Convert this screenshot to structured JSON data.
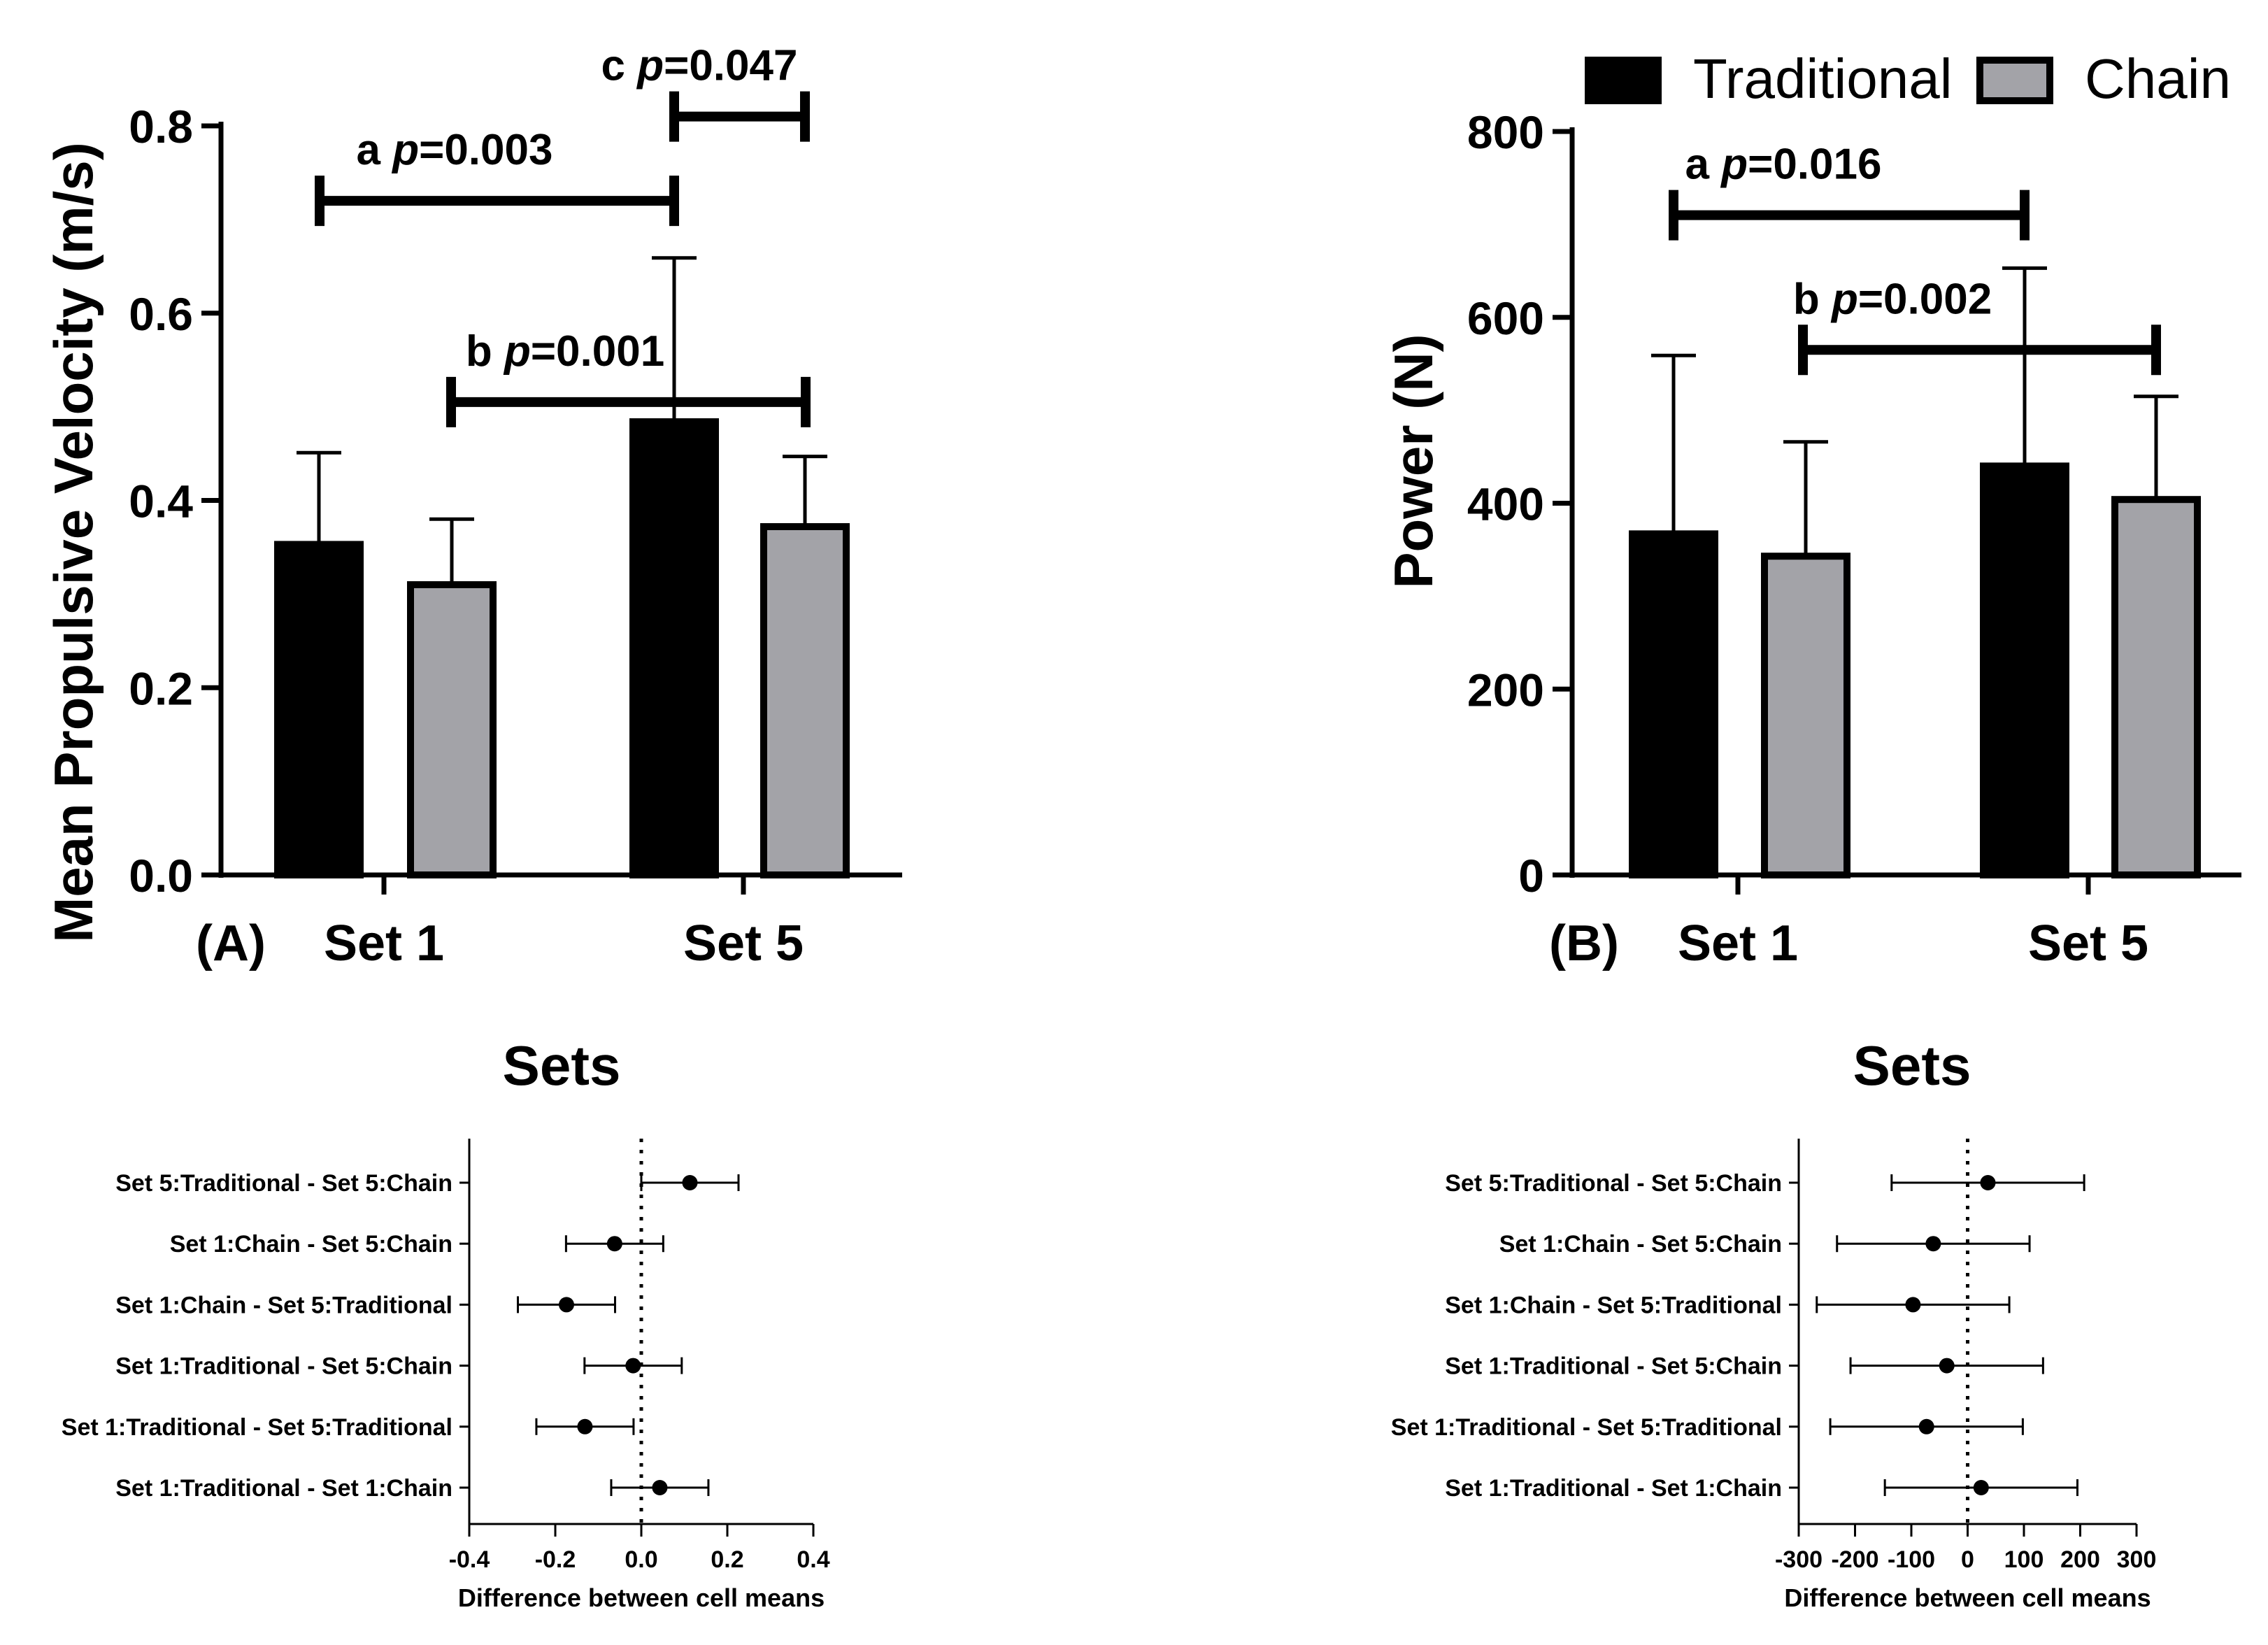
{
  "colors": {
    "traditional": "#000000",
    "chain": "#a3a3a8",
    "axis": "#000000",
    "background": "#ffffff"
  },
  "chart_data": [
    {
      "id": "A",
      "type": "bar",
      "panel_label": "(A)",
      "title": "",
      "ylabel": "Mean Propulsive Velocity (m/s)",
      "xlabel": "",
      "categories": [
        "Set 1",
        "Set 5"
      ],
      "ylim": [
        0,
        0.8
      ],
      "yticks": [
        0,
        0.2,
        0.4,
        0.6,
        0.8
      ],
      "ytick_labels": [
        "0.0",
        "0.2",
        "0.4",
        "0.6",
        "0.8"
      ],
      "series": [
        {
          "name": "Traditional",
          "values": [
            0.353,
            0.484
          ],
          "sd": [
            0.098,
            0.175
          ]
        },
        {
          "name": "Chain",
          "values": [
            0.31,
            0.372
          ],
          "sd": [
            0.07,
            0.075
          ]
        }
      ],
      "annotations": [
        {
          "letter": "a",
          "p_label": "p",
          "p_value": "=0.003",
          "from": "Set 1:Traditional",
          "to": "Set 5:Traditional",
          "y": 0.72
        },
        {
          "letter": "b",
          "p_label": "p",
          "p_value": "=0.001",
          "from": "Set 1:Chain",
          "to": "Set 5:Chain",
          "y": 0.505
        },
        {
          "letter": "c",
          "p_label": "p",
          "p_value": "=0.047",
          "from": "Set 5:Traditional",
          "to": "Set 5:Chain",
          "y": 0.81
        }
      ]
    },
    {
      "id": "B",
      "type": "bar",
      "panel_label": "(B)",
      "title": "",
      "ylabel": "Power (N)",
      "xlabel": "",
      "categories": [
        "Set 1",
        "Set 5"
      ],
      "ylim": [
        0,
        800
      ],
      "yticks": [
        0,
        200,
        400,
        600,
        800
      ],
      "ytick_labels": [
        "0",
        "200",
        "400",
        "600",
        "800"
      ],
      "legend": {
        "position": "top",
        "entries": [
          "Traditional",
          "Chain"
        ]
      },
      "series": [
        {
          "name": "Traditional",
          "values": [
            367,
            440
          ],
          "sd": [
            192,
            213
          ]
        },
        {
          "name": "Chain",
          "values": [
            343,
            404
          ],
          "sd": [
            123,
            111
          ]
        }
      ],
      "annotations": [
        {
          "letter": "a",
          "p_label": "p",
          "p_value": "=0.016",
          "from": "Set 1:Traditional",
          "to": "Set 5:Traditional",
          "y": 710
        },
        {
          "letter": "b",
          "p_label": "p",
          "p_value": "=0.002",
          "from": "Set 1:Chain",
          "to": "Set 5:Chain",
          "y": 565
        }
      ]
    },
    {
      "id": "C",
      "type": "scatter",
      "title": "Sets",
      "xlabel": "Difference between cell means",
      "ylabel": "",
      "xlim": [
        -0.4,
        0.4
      ],
      "xticks": [
        -0.4,
        -0.2,
        0.0,
        0.2,
        0.4
      ],
      "xtick_labels": [
        "-0.4",
        "-0.2",
        "0.0",
        "0.2",
        "0.4"
      ],
      "zero_line": "dotted",
      "rows": [
        {
          "label": "Set 5:Traditional - Set 5:Chain",
          "mean": 0.113,
          "low": 0.0,
          "high": 0.226
        },
        {
          "label": "Set 1:Chain - Set 5:Chain",
          "mean": -0.062,
          "low": -0.175,
          "high": 0.051
        },
        {
          "label": "Set 1:Chain - Set 5:Traditional",
          "mean": -0.174,
          "low": -0.287,
          "high": -0.061
        },
        {
          "label": "Set 1:Traditional - Set 5:Chain",
          "mean": -0.019,
          "low": -0.132,
          "high": 0.094
        },
        {
          "label": "Set 1:Traditional - Set 5:Traditional",
          "mean": -0.131,
          "low": -0.244,
          "high": -0.018
        },
        {
          "label": "Set 1:Traditional - Set 1:Chain",
          "mean": 0.043,
          "low": -0.07,
          "high": 0.156
        }
      ]
    },
    {
      "id": "D",
      "type": "scatter",
      "title": "Sets",
      "xlabel": "Difference between cell means",
      "ylabel": "",
      "xlim": [
        -300,
        300
      ],
      "xticks": [
        -300,
        -200,
        -100,
        0,
        100,
        200,
        300
      ],
      "xtick_labels": [
        "-300",
        "-200",
        "-100",
        "0",
        "100",
        "200",
        "300"
      ],
      "zero_line": "dotted",
      "rows": [
        {
          "label": "Set 5:Traditional - Set 5:Chain",
          "mean": 36,
          "low": -135,
          "high": 207
        },
        {
          "label": "Set 1:Chain - Set 5:Chain",
          "mean": -61,
          "low": -232,
          "high": 110
        },
        {
          "label": "Set 1:Chain - Set 5:Traditional",
          "mean": -97,
          "low": -268,
          "high": 74
        },
        {
          "label": "Set 1:Traditional - Set 5:Chain",
          "mean": -37,
          "low": -208,
          "high": 134
        },
        {
          "label": "Set 1:Traditional - Set 5:Traditional",
          "mean": -73,
          "low": -244,
          "high": 98
        },
        {
          "label": "Set 1:Traditional - Set 1:Chain",
          "mean": 24,
          "low": -147,
          "high": 195
        }
      ]
    }
  ]
}
